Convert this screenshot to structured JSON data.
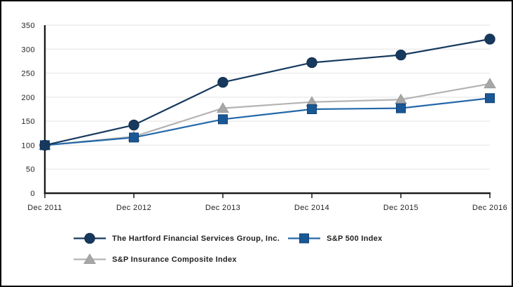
{
  "window": {
    "background": "#ffffff",
    "border_color": "#000000"
  },
  "chart_data": {
    "type": "line",
    "x_labels": [
      "Dec 2011",
      "Dec 2012",
      "Dec 2013",
      "Dec 2014",
      "Dec 2015",
      "Dec 2016"
    ],
    "y_ticks": [
      350,
      300,
      250,
      200,
      150,
      100,
      50,
      0
    ],
    "ylim": [
      0,
      350
    ],
    "grid": "horizontal",
    "legend_position": "bottom-left",
    "series": [
      {
        "name": "The Hartford Financial Services Group, Inc.",
        "marker": "circle",
        "line_color": "#17395e",
        "marker_color": "#17395e",
        "marker_border": "#122e4d",
        "values": [
          100,
          142,
          231,
          272,
          288,
          321
        ]
      },
      {
        "name": "S&P 500 Index",
        "marker": "square",
        "line_color": "#2368a9",
        "marker_color": "#1a5795",
        "marker_border": "#0f4274",
        "values": [
          100,
          116,
          154,
          175,
          177,
          198
        ]
      },
      {
        "name": "S&P Insurance Composite Index",
        "marker": "triangle",
        "line_color": "#b3b3b3",
        "marker_color": "#a7a7a7",
        "marker_border": "#9b9b9b",
        "values": [
          100,
          118,
          177,
          190,
          195,
          228
        ]
      }
    ],
    "colors": {
      "axis": "#1c1c1c",
      "grid": "#e8e8e8",
      "text": "#1f1f1f"
    }
  }
}
